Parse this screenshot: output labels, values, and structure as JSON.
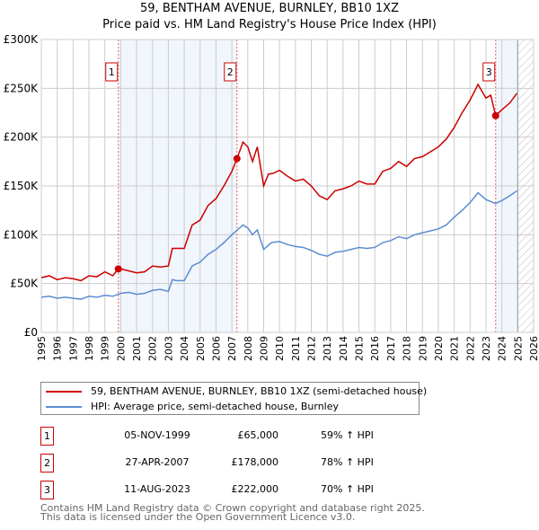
{
  "chart_data": {
    "type": "line",
    "title": "59, BENTHAM AVENUE, BURNLEY, BB10 1XZ",
    "subtitle": "Price paid vs. HM Land Registry's House Price Index (HPI)",
    "xlim": [
      1995,
      2026
    ],
    "ylim": [
      0,
      300000
    ],
    "y_ticks": [
      {
        "v": 0,
        "label": "£0"
      },
      {
        "v": 50000,
        "label": "£50K"
      },
      {
        "v": 100000,
        "label": "£100K"
      },
      {
        "v": 150000,
        "label": "£150K"
      },
      {
        "v": 200000,
        "label": "£200K"
      },
      {
        "v": 250000,
        "label": "£250K"
      },
      {
        "v": 300000,
        "label": "£300K"
      }
    ],
    "x_ticks": [
      "1995",
      "1996",
      "1997",
      "1998",
      "1999",
      "2000",
      "2001",
      "2002",
      "2003",
      "2004",
      "2005",
      "2006",
      "2007",
      "2008",
      "2009",
      "2010",
      "2011",
      "2012",
      "2013",
      "2014",
      "2015",
      "2016",
      "2017",
      "2018",
      "2019",
      "2020",
      "2021",
      "2022",
      "2023",
      "2024",
      "2025",
      "2026"
    ],
    "grid": true,
    "series": [
      {
        "name": "59, BENTHAM AVENUE, BURNLEY, BB10 1XZ (semi-detached house)",
        "color": "#cc0000",
        "x": [
          1995,
          1995.5,
          1996,
          1996.5,
          1997,
          1997.5,
          1998,
          1998.5,
          1999,
          1999.5,
          1999.85,
          2000,
          2000.5,
          2001,
          2001.5,
          2002,
          2002.5,
          2003,
          2003.25,
          2003.5,
          2004,
          2004.5,
          2005,
          2005.5,
          2006,
          2006.5,
          2007,
          2007.32,
          2007.7,
          2008,
          2008.3,
          2008.6,
          2009,
          2009.3,
          2009.6,
          2010,
          2010.5,
          2011,
          2011.5,
          2012,
          2012.5,
          2013,
          2013.5,
          2014,
          2014.5,
          2015,
          2015.5,
          2016,
          2016.5,
          2017,
          2017.5,
          2018,
          2018.5,
          2019,
          2019.5,
          2020,
          2020.5,
          2021,
          2021.5,
          2022,
          2022.5,
          2023,
          2023.3,
          2023.61,
          2024,
          2024.5,
          2024.95
        ],
        "y": [
          56000,
          58000,
          54000,
          56000,
          55000,
          53000,
          58000,
          57000,
          62000,
          58000,
          65000,
          65000,
          63000,
          61000,
          62000,
          68000,
          67000,
          68000,
          86000,
          86000,
          86000,
          110000,
          115000,
          130000,
          137000,
          150000,
          165000,
          178000,
          195000,
          190000,
          175000,
          190000,
          150000,
          162000,
          163000,
          166000,
          160000,
          155000,
          157000,
          150000,
          140000,
          136000,
          145000,
          147000,
          150000,
          155000,
          152000,
          152000,
          165000,
          168000,
          175000,
          170000,
          178000,
          180000,
          185000,
          190000,
          198000,
          210000,
          225000,
          238000,
          254000,
          240000,
          243000,
          222000,
          228000,
          235000,
          245000
        ]
      },
      {
        "name": "HPI: Average price, semi-detached house, Burnley",
        "color": "#5b8dd0",
        "x": [
          1995,
          1995.5,
          1996,
          1996.5,
          1997,
          1997.5,
          1998,
          1998.5,
          1999,
          1999.5,
          2000,
          2000.5,
          2001,
          2001.5,
          2002,
          2002.5,
          2003,
          2003.25,
          2003.5,
          2004,
          2004.5,
          2005,
          2005.5,
          2006,
          2006.5,
          2007,
          2007.7,
          2008,
          2008.3,
          2008.6,
          2009,
          2009.5,
          2010,
          2010.5,
          2011,
          2011.5,
          2012,
          2012.5,
          2013,
          2013.5,
          2014,
          2014.5,
          2015,
          2015.5,
          2016,
          2016.5,
          2017,
          2017.5,
          2018,
          2018.5,
          2019,
          2019.5,
          2020,
          2020.5,
          2021,
          2021.5,
          2022,
          2022.5,
          2023,
          2023.6,
          2024,
          2024.5,
          2024.95
        ],
        "y": [
          36000,
          37000,
          35000,
          36000,
          35000,
          34000,
          37000,
          36000,
          38000,
          37000,
          40000,
          41000,
          39000,
          40000,
          43000,
          44000,
          42000,
          54000,
          53000,
          53000,
          68000,
          72000,
          80000,
          85000,
          92000,
          100000,
          110000,
          107000,
          100000,
          105000,
          85000,
          92000,
          93000,
          90000,
          88000,
          87000,
          84000,
          80000,
          78000,
          82000,
          83000,
          85000,
          87000,
          86000,
          87000,
          92000,
          94000,
          98000,
          96000,
          100000,
          102000,
          104000,
          106000,
          110000,
          118000,
          125000,
          133000,
          143000,
          136000,
          132000,
          135000,
          140000,
          145000
        ]
      }
    ],
    "sales": [
      {
        "label": "1",
        "date": "05-NOV-1999",
        "x": 1999.85,
        "price": "£65,000",
        "value": 65000,
        "hpi": "59% ↑ HPI"
      },
      {
        "label": "2",
        "date": "27-APR-2007",
        "x": 2007.32,
        "price": "£178,000",
        "value": 178000,
        "hpi": "78% ↑ HPI"
      },
      {
        "label": "3",
        "date": "11-AUG-2023",
        "x": 2023.61,
        "price": "£222,000",
        "value": 222000,
        "hpi": "70% ↑ HPI"
      }
    ],
    "shaded_ranges": [
      [
        1999.85,
        2007.32
      ],
      [
        2023.61,
        2025.0
      ]
    ],
    "hatched_from": 2025.0,
    "legend_placement": "below"
  },
  "footer": {
    "line1": "Contains HM Land Registry data © Crown copyright and database right 2025.",
    "line2": "This data is licensed under the Open Government Licence v3.0."
  }
}
